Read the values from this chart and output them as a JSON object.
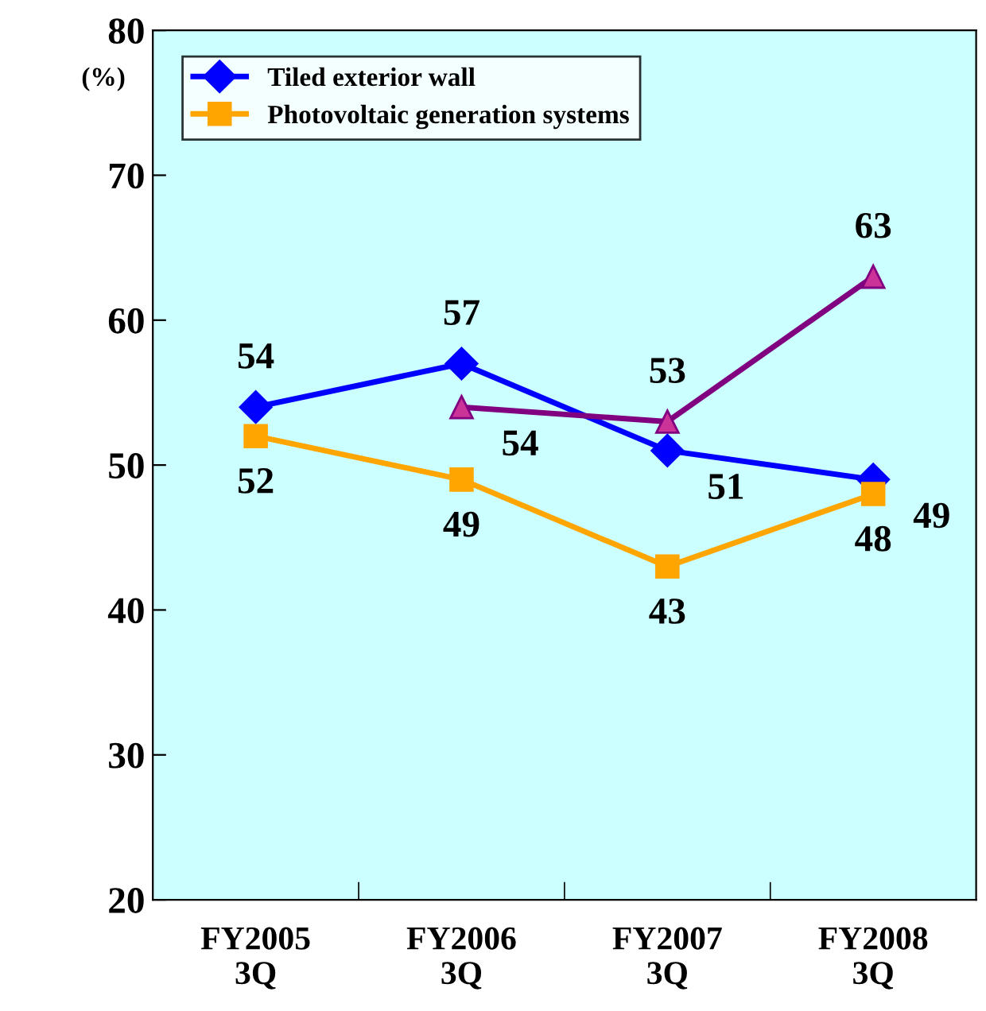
{
  "chart_data": {
    "type": "line",
    "ylabel": "(%)",
    "categories": [
      "FY2005\n3Q",
      "FY2006\n3Q",
      "FY2007\n3Q",
      "FY2008\n3Q"
    ],
    "series": [
      {
        "name": "Tiled exterior wall",
        "color": "#0000ff",
        "marker": "diamond",
        "values": [
          54,
          57,
          51,
          49
        ]
      },
      {
        "name": "Photovoltaic generation systems",
        "color": "#ffa500",
        "marker": "square",
        "values": [
          52,
          49,
          43,
          48
        ]
      },
      {
        "color": "#800080",
        "marker": "triangle",
        "values": [
          null,
          54,
          53,
          63
        ]
      }
    ],
    "ylim": [
      20,
      80
    ],
    "yticks": [
      20,
      30,
      40,
      50,
      60,
      70,
      80
    ],
    "grid": false,
    "legend": "top left",
    "data_labels": true,
    "line_style": "solid"
  }
}
